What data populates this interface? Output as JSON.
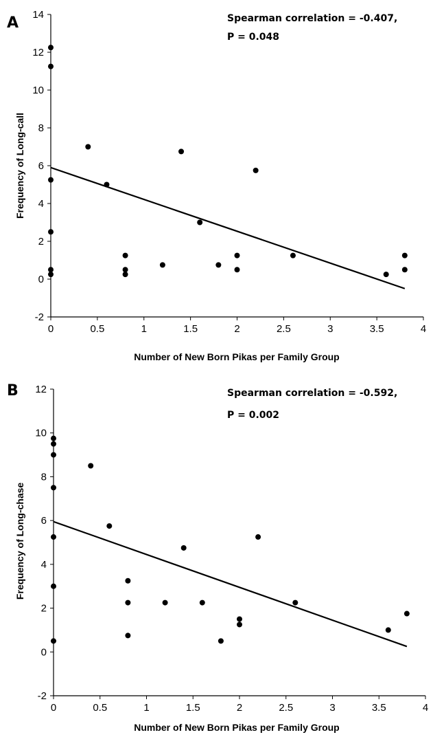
{
  "chart_data": [
    {
      "type": "scatter",
      "panel_label": "A",
      "title": "",
      "xlabel": "Number of New Born Pikas per Family Group",
      "ylabel": "Frequency of Long-call",
      "xlim": [
        0,
        4
      ],
      "ylim": [
        -2,
        14
      ],
      "xticks": [
        "0",
        "0.5",
        "1",
        "1.5",
        "2",
        "2.5",
        "3",
        "3.5",
        "4"
      ],
      "yticks": [
        "-2",
        "0",
        "2",
        "4",
        "6",
        "8",
        "10",
        "12",
        "14"
      ],
      "grid": false,
      "annotation_lines": [
        "Spearman correlation = -0.407,",
        "P = 0.048"
      ],
      "points": [
        {
          "x": 0,
          "y": 12.25
        },
        {
          "x": 0,
          "y": 11.25
        },
        {
          "x": 0,
          "y": 5.25
        },
        {
          "x": 0,
          "y": 2.5
        },
        {
          "x": 0,
          "y": 0.5
        },
        {
          "x": 0,
          "y": 0.25
        },
        {
          "x": 0.4,
          "y": 7.0
        },
        {
          "x": 0.6,
          "y": 5.0
        },
        {
          "x": 0.8,
          "y": 1.25
        },
        {
          "x": 0.8,
          "y": 0.5
        },
        {
          "x": 0.8,
          "y": 0.25
        },
        {
          "x": 1.2,
          "y": 0.75
        },
        {
          "x": 1.4,
          "y": 6.75
        },
        {
          "x": 1.6,
          "y": 3.0
        },
        {
          "x": 1.8,
          "y": 0.75
        },
        {
          "x": 2.0,
          "y": 1.25
        },
        {
          "x": 2.0,
          "y": 0.5
        },
        {
          "x": 2.2,
          "y": 5.75
        },
        {
          "x": 2.6,
          "y": 1.25
        },
        {
          "x": 3.6,
          "y": 0.25
        },
        {
          "x": 3.8,
          "y": 1.25
        },
        {
          "x": 3.8,
          "y": 0.5
        }
      ],
      "trendline": {
        "x": [
          0,
          3.8
        ],
        "y": [
          5.9,
          -0.5
        ]
      }
    },
    {
      "type": "scatter",
      "panel_label": "B",
      "title": "",
      "xlabel": "Number of New Born Pikas per Family Group",
      "ylabel": "Frequency of Long-chase",
      "xlim": [
        0,
        4
      ],
      "ylim": [
        -2,
        12
      ],
      "xticks": [
        "0",
        "0.5",
        "1",
        "1.5",
        "2",
        "2.5",
        "3",
        "3.5",
        "4"
      ],
      "yticks": [
        "-2",
        "0",
        "2",
        "4",
        "6",
        "8",
        "10",
        "12"
      ],
      "grid": false,
      "annotation_lines": [
        "Spearman correlation = -0.592,",
        "P = 0.002"
      ],
      "points": [
        {
          "x": 0,
          "y": 9.75
        },
        {
          "x": 0,
          "y": 9.5
        },
        {
          "x": 0,
          "y": 9.0
        },
        {
          "x": 0,
          "y": 7.5
        },
        {
          "x": 0,
          "y": 5.25
        },
        {
          "x": 0,
          "y": 3.0
        },
        {
          "x": 0,
          "y": 0.5
        },
        {
          "x": 0.4,
          "y": 8.5
        },
        {
          "x": 0.6,
          "y": 5.75
        },
        {
          "x": 0.8,
          "y": 3.25
        },
        {
          "x": 0.8,
          "y": 2.25
        },
        {
          "x": 0.8,
          "y": 0.75
        },
        {
          "x": 1.2,
          "y": 2.25
        },
        {
          "x": 1.4,
          "y": 4.75
        },
        {
          "x": 1.6,
          "y": 2.25
        },
        {
          "x": 1.8,
          "y": 0.5
        },
        {
          "x": 2.0,
          "y": 1.5
        },
        {
          "x": 2.0,
          "y": 1.25
        },
        {
          "x": 2.2,
          "y": 5.25
        },
        {
          "x": 2.6,
          "y": 2.25
        },
        {
          "x": 3.6,
          "y": 1.0
        },
        {
          "x": 3.8,
          "y": 1.75
        }
      ],
      "trendline": {
        "x": [
          0,
          3.8
        ],
        "y": [
          5.95,
          0.25
        ]
      }
    }
  ]
}
